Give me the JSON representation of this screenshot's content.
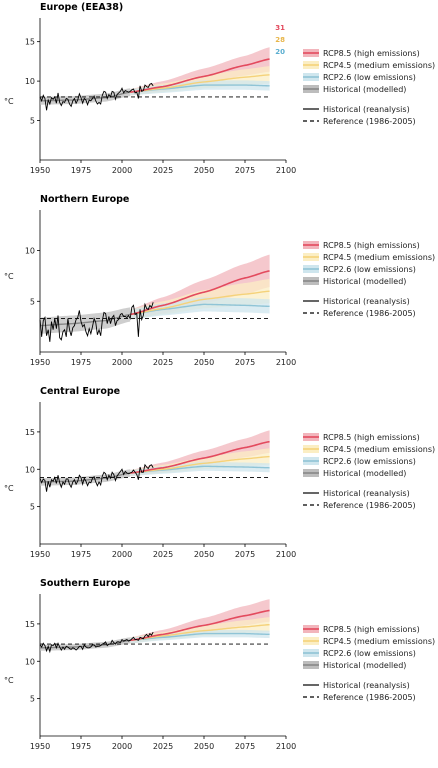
{
  "colors": {
    "rcp85": "#e34a5e",
    "rcp85_band": "#f2b5bc",
    "rcp45": "#f5d27a",
    "rcp45_band": "#fbeec4",
    "rcp26": "#8fc4d6",
    "rcp26_band": "#cfe6ee",
    "hist_model": "#888888",
    "hist_model_band": "#bdbdbd",
    "observed": "#000000",
    "reference": "#000000"
  },
  "legend": {
    "rcp85": "RCP8.5 (high emissions)",
    "rcp45": "RCP4.5 (medium emissions)",
    "rcp26": "RCP2.6 (low emissions)",
    "hist_model": "Historical (modelled)",
    "observed": "Historical (reanalysis)",
    "reference": "Reference (1986-2005)"
  },
  "model_counts": {
    "rcp85": "31",
    "rcp45": "28",
    "rcp26": "20"
  },
  "chart_data": [
    {
      "type": "line",
      "title": "Europe (EEA38)",
      "ylabel": "°C",
      "xlim": [
        1950,
        2100
      ],
      "ylim": [
        0,
        18
      ],
      "xticks": [
        "1950",
        "1975",
        "2000",
        "2025",
        "2050",
        "2075",
        "2100"
      ],
      "yticks": [
        "5",
        "10",
        "15"
      ],
      "reference": 8.0,
      "observed": {
        "x_start": 1950,
        "values": [
          8.0,
          7.5,
          8.2,
          7.8,
          6.3,
          7.6,
          7.1,
          7.9,
          7.7,
          8.0,
          7.2,
          8.5,
          7.3,
          6.9,
          7.4,
          7.3,
          7.8,
          7.7,
          7.1,
          6.8,
          7.5,
          7.8,
          7.2,
          7.6,
          8.4,
          7.9,
          7.2,
          7.8,
          7.6,
          7.0,
          7.6,
          7.5,
          7.8,
          8.1,
          7.5,
          7.1,
          7.3,
          7.1,
          8.2,
          8.7,
          8.6,
          7.8,
          8.3,
          8.0,
          8.7,
          8.6,
          7.7,
          8.3,
          8.5,
          8.7,
          9.1,
          8.5,
          8.8,
          8.7,
          8.6,
          8.7,
          8.9,
          9.0,
          8.5,
          8.6,
          7.8,
          9.4,
          8.7,
          8.8,
          9.5,
          9.3,
          9.2,
          9.6,
          9.7,
          9.4
        ]
      },
      "historical_modelled": {
        "x": [
          1950,
          1970,
          1990,
          2005
        ],
        "mean": [
          7.5,
          7.6,
          7.9,
          8.6
        ],
        "lower": [
          7.0,
          7.1,
          7.4,
          8.1
        ],
        "upper": [
          8.0,
          8.1,
          8.4,
          9.1
        ]
      },
      "scenarios": {
        "rcp85": {
          "x": [
            2005,
            2025,
            2050,
            2075,
            2090
          ],
          "mean": [
            8.6,
            9.3,
            10.6,
            12.0,
            12.8
          ],
          "lower": [
            8.2,
            8.7,
            9.7,
            10.7,
            11.2
          ],
          "upper": [
            9.0,
            10.0,
            11.6,
            13.2,
            14.3
          ]
        },
        "rcp45": {
          "x": [
            2005,
            2025,
            2050,
            2075,
            2090
          ],
          "mean": [
            8.6,
            9.1,
            9.9,
            10.5,
            10.8
          ],
          "lower": [
            8.2,
            8.6,
            9.1,
            9.5,
            9.7
          ],
          "upper": [
            9.0,
            9.7,
            10.7,
            11.5,
            11.9
          ]
        },
        "rcp26": {
          "x": [
            2005,
            2025,
            2050,
            2075,
            2090
          ],
          "mean": [
            8.6,
            9.0,
            9.5,
            9.5,
            9.4
          ],
          "lower": [
            8.2,
            8.5,
            8.9,
            8.9,
            8.8
          ],
          "upper": [
            9.0,
            9.5,
            10.1,
            10.1,
            10.0
          ]
        }
      }
    },
    {
      "type": "line",
      "title": "Northern Europe",
      "ylabel": "°C",
      "xlim": [
        1950,
        2100
      ],
      "ylim": [
        0,
        14
      ],
      "xticks": [
        "1950",
        "1975",
        "2000",
        "2025",
        "2050",
        "2075",
        "2100"
      ],
      "yticks": [
        "5",
        "10"
      ],
      "reference": 3.3,
      "observed": {
        "x_start": 1950,
        "values": [
          3.2,
          1.5,
          3.1,
          3.4,
          1.6,
          2.2,
          1.0,
          3.0,
          2.2,
          3.3,
          2.3,
          3.6,
          1.4,
          1.2,
          2.0,
          2.2,
          1.5,
          3.3,
          2.2,
          1.6,
          2.4,
          2.6,
          3.2,
          3.4,
          4.1,
          3.0,
          2.5,
          2.7,
          2.0,
          1.6,
          2.3,
          1.8,
          2.5,
          3.3,
          2.9,
          1.7,
          2.2,
          1.6,
          3.1,
          3.9,
          3.8,
          2.8,
          3.5,
          2.8,
          3.4,
          3.6,
          2.6,
          3.1,
          3.2,
          3.7,
          3.8,
          3.5,
          3.5,
          3.4,
          3.6,
          3.3,
          4.4,
          4.6,
          3.7,
          3.8,
          1.5,
          4.2,
          3.2,
          3.6,
          4.7,
          4.3,
          4.2,
          4.6,
          4.4,
          4.9
        ]
      },
      "historical_modelled": {
        "x": [
          1950,
          1970,
          1990,
          2005
        ],
        "mean": [
          2.6,
          2.8,
          3.1,
          3.7
        ],
        "lower": [
          1.8,
          2.0,
          2.3,
          3.0
        ],
        "upper": [
          3.4,
          3.6,
          3.9,
          4.4
        ]
      },
      "scenarios": {
        "rcp85": {
          "x": [
            2005,
            2025,
            2050,
            2075,
            2090
          ],
          "mean": [
            3.7,
            4.6,
            5.9,
            7.3,
            8.0
          ],
          "lower": [
            3.2,
            3.8,
            4.8,
            5.7,
            6.4
          ],
          "upper": [
            4.2,
            5.4,
            7.1,
            8.7,
            9.6
          ]
        },
        "rcp45": {
          "x": [
            2005,
            2025,
            2050,
            2075,
            2090
          ],
          "mean": [
            3.7,
            4.3,
            5.2,
            5.7,
            6.0
          ],
          "lower": [
            3.2,
            3.7,
            4.3,
            4.6,
            4.8
          ],
          "upper": [
            4.2,
            5.0,
            6.1,
            6.8,
            7.2
          ]
        },
        "rcp26": {
          "x": [
            2005,
            2025,
            2050,
            2075,
            2090
          ],
          "mean": [
            3.7,
            4.2,
            4.7,
            4.6,
            4.5
          ],
          "lower": [
            3.2,
            3.6,
            4.0,
            3.9,
            3.8
          ],
          "upper": [
            4.2,
            4.8,
            5.4,
            5.3,
            5.2
          ]
        }
      }
    },
    {
      "type": "line",
      "title": "Central Europe",
      "ylabel": "°C",
      "xlim": [
        1950,
        2100
      ],
      "ylim": [
        0,
        19
      ],
      "xticks": [
        "1950",
        "1975",
        "2000",
        "2025",
        "2050",
        "2075",
        "2100"
      ],
      "yticks": [
        "5",
        "10",
        "15"
      ],
      "reference": 8.9,
      "observed": {
        "x_start": 1950,
        "values": [
          8.8,
          8.2,
          8.7,
          8.5,
          7.0,
          8.4,
          7.6,
          8.6,
          8.4,
          8.9,
          8.1,
          9.2,
          8.2,
          7.6,
          8.3,
          8.0,
          8.7,
          8.7,
          8.0,
          7.6,
          8.3,
          8.6,
          8.0,
          8.4,
          9.2,
          8.9,
          8.0,
          8.8,
          8.4,
          7.8,
          8.3,
          8.2,
          8.8,
          9.0,
          8.3,
          7.8,
          8.3,
          7.9,
          9.1,
          9.6,
          9.4,
          8.6,
          9.2,
          8.8,
          9.6,
          9.3,
          8.5,
          9.1,
          9.4,
          9.7,
          10.0,
          9.3,
          9.7,
          9.5,
          9.4,
          9.5,
          9.6,
          9.9,
          9.6,
          9.3,
          8.6,
          10.3,
          9.6,
          9.6,
          10.6,
          10.3,
          10.1,
          10.5,
          10.6,
          10.2
        ]
      },
      "historical_modelled": {
        "x": [
          1950,
          1970,
          1990,
          2005
        ],
        "mean": [
          8.3,
          8.4,
          8.8,
          9.5
        ],
        "lower": [
          7.8,
          7.9,
          8.3,
          9.0
        ],
        "upper": [
          8.8,
          8.9,
          9.3,
          10.0
        ]
      },
      "scenarios": {
        "rcp85": {
          "x": [
            2005,
            2025,
            2050,
            2075,
            2090
          ],
          "mean": [
            9.5,
            10.2,
            11.5,
            12.9,
            13.7
          ],
          "lower": [
            9.1,
            9.6,
            10.6,
            11.6,
            12.2
          ],
          "upper": [
            9.9,
            10.9,
            12.5,
            14.1,
            15.2
          ]
        },
        "rcp45": {
          "x": [
            2005,
            2025,
            2050,
            2075,
            2090
          ],
          "mean": [
            9.5,
            10.0,
            10.8,
            11.4,
            11.7
          ],
          "lower": [
            9.1,
            9.5,
            10.0,
            10.4,
            10.6
          ],
          "upper": [
            9.9,
            10.6,
            11.6,
            12.4,
            12.8
          ]
        },
        "rcp26": {
          "x": [
            2005,
            2025,
            2050,
            2075,
            2090
          ],
          "mean": [
            9.5,
            9.9,
            10.4,
            10.3,
            10.2
          ],
          "lower": [
            9.1,
            9.4,
            9.8,
            9.7,
            9.6
          ],
          "upper": [
            9.9,
            10.4,
            11.0,
            10.9,
            10.8
          ]
        }
      }
    },
    {
      "type": "line",
      "title": "Southern Europe",
      "ylabel": "°C",
      "xlim": [
        1950,
        2100
      ],
      "ylim": [
        0,
        19
      ],
      "xticks": [
        "1950",
        "1975",
        "2000",
        "2025",
        "2050",
        "2075",
        "2100"
      ],
      "yticks": [
        "5",
        "10",
        "15"
      ],
      "reference": 12.3,
      "observed": {
        "x_start": 1950,
        "values": [
          12.2,
          11.9,
          12.4,
          12.1,
          11.4,
          12.0,
          11.3,
          12.2,
          12.1,
          12.4,
          11.8,
          12.4,
          11.9,
          11.5,
          11.9,
          11.6,
          12.0,
          11.9,
          11.7,
          11.6,
          11.8,
          11.7,
          11.5,
          11.7,
          12.0,
          12.0,
          11.6,
          12.2,
          11.9,
          11.8,
          11.8,
          11.9,
          12.2,
          12.2,
          11.9,
          12.0,
          12.0,
          12.1,
          12.3,
          12.4,
          12.6,
          12.1,
          12.3,
          12.3,
          12.8,
          12.5,
          12.3,
          12.6,
          12.6,
          12.5,
          12.9,
          12.7,
          12.8,
          12.9,
          12.7,
          12.8,
          13.0,
          13.2,
          12.9,
          12.9,
          12.8,
          13.2,
          13.1,
          13.0,
          13.4,
          13.6,
          13.3,
          13.7,
          13.5,
          13.9
        ]
      },
      "historical_modelled": {
        "x": [
          1950,
          1970,
          1990,
          2005
        ],
        "mean": [
          11.8,
          11.9,
          12.2,
          12.8
        ],
        "lower": [
          11.4,
          11.5,
          11.8,
          12.4
        ],
        "upper": [
          12.2,
          12.3,
          12.6,
          13.2
        ]
      },
      "scenarios": {
        "rcp85": {
          "x": [
            2005,
            2025,
            2050,
            2075,
            2090
          ],
          "mean": [
            12.8,
            13.6,
            14.8,
            16.1,
            16.8
          ],
          "lower": [
            12.4,
            13.0,
            13.9,
            14.8,
            15.3
          ],
          "upper": [
            13.2,
            14.2,
            15.8,
            17.4,
            18.3
          ]
        },
        "rcp45": {
          "x": [
            2005,
            2025,
            2050,
            2075,
            2090
          ],
          "mean": [
            12.8,
            13.4,
            14.1,
            14.6,
            14.9
          ],
          "lower": [
            12.4,
            12.9,
            13.4,
            13.7,
            13.9
          ],
          "upper": [
            13.2,
            13.9,
            14.8,
            15.5,
            15.9
          ]
        },
        "rcp26": {
          "x": [
            2005,
            2025,
            2050,
            2075,
            2090
          ],
          "mean": [
            12.8,
            13.2,
            13.7,
            13.7,
            13.6
          ],
          "lower": [
            12.4,
            12.8,
            13.2,
            13.2,
            13.1
          ],
          "upper": [
            13.2,
            13.6,
            14.2,
            14.2,
            14.1
          ]
        }
      }
    }
  ]
}
